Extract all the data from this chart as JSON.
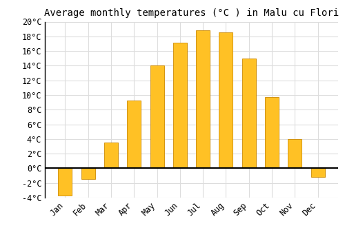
{
  "title": "Average monthly temperatures (°C ) in Malu cu Flori",
  "months": [
    "Jan",
    "Feb",
    "Mar",
    "Apr",
    "May",
    "Jun",
    "Jul",
    "Aug",
    "Sep",
    "Oct",
    "Nov",
    "Dec"
  ],
  "values": [
    -3.7,
    -1.5,
    3.5,
    9.2,
    14.0,
    17.1,
    18.8,
    18.5,
    15.0,
    9.7,
    4.0,
    -1.2
  ],
  "bar_color": "#FFC125",
  "bar_edge_color": "#CC8800",
  "ylim": [
    -4,
    20
  ],
  "yticks": [
    -4,
    -2,
    0,
    2,
    4,
    6,
    8,
    10,
    12,
    14,
    16,
    18,
    20
  ],
  "ytick_labels": [
    "-4°C",
    "-2°C",
    "0°C",
    "2°C",
    "4°C",
    "6°C",
    "8°C",
    "10°C",
    "12°C",
    "14°C",
    "16°C",
    "18°C",
    "20°C"
  ],
  "background_color": "#FFFFFF",
  "grid_color": "#DDDDDD",
  "title_fontsize": 10,
  "tick_fontsize": 8.5
}
